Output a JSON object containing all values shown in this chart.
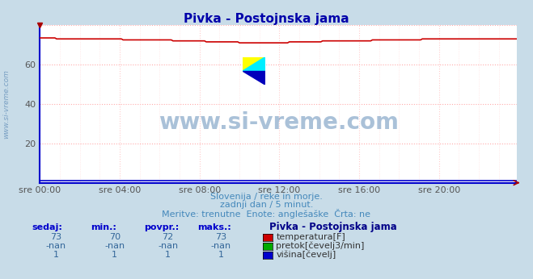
{
  "title": "Pivka - Postojnska jama",
  "bg_color": "#c8dce8",
  "plot_bg_color": "#ffffff",
  "grid_h_color": "#ffaaaa",
  "grid_v_color": "#ffcccc",
  "axis_color": "#0000cc",
  "x_labels": [
    "sre 00:00",
    "sre 04:00",
    "sre 08:00",
    "sre 12:00",
    "sre 16:00",
    "sre 20:00"
  ],
  "x_ticks": [
    0,
    48,
    96,
    144,
    192,
    240
  ],
  "x_max": 287,
  "ylim": [
    0,
    80
  ],
  "y_ticks": [
    20,
    40,
    60
  ],
  "temp_color": "#cc0000",
  "flow_color": "#00aa00",
  "height_color": "#0000cc",
  "watermark_text": "www.si-vreme.com",
  "watermark_color": "#4477aa",
  "subtitle1": "Slovenija / reke in morje.",
  "subtitle2": "zadnji dan / 5 minut.",
  "subtitle3": "Meritve: trenutne  Enote: anglešaške  Črta: ne",
  "subtitle_color": "#4488bb",
  "title_color": "#0000aa",
  "table_header_color": "#0000cc",
  "table_data_color": "#336699",
  "col_headers": [
    "sedaj:",
    "min.:",
    "povpr.:",
    "maks.:"
  ],
  "row1": [
    "73",
    "70",
    "72",
    "73"
  ],
  "row2": [
    "-nan",
    "-nan",
    "-nan",
    "-nan"
  ],
  "row3": [
    "1",
    "1",
    "1",
    "1"
  ],
  "legend_title": "Pivka - Postojnska jama",
  "legend_items": [
    "temperatura[F]",
    "pretok[čevelj3/min]",
    "višina[čevelj]"
  ],
  "legend_colors": [
    "#cc0000",
    "#00aa00",
    "#0000cc"
  ],
  "num_points": 288
}
